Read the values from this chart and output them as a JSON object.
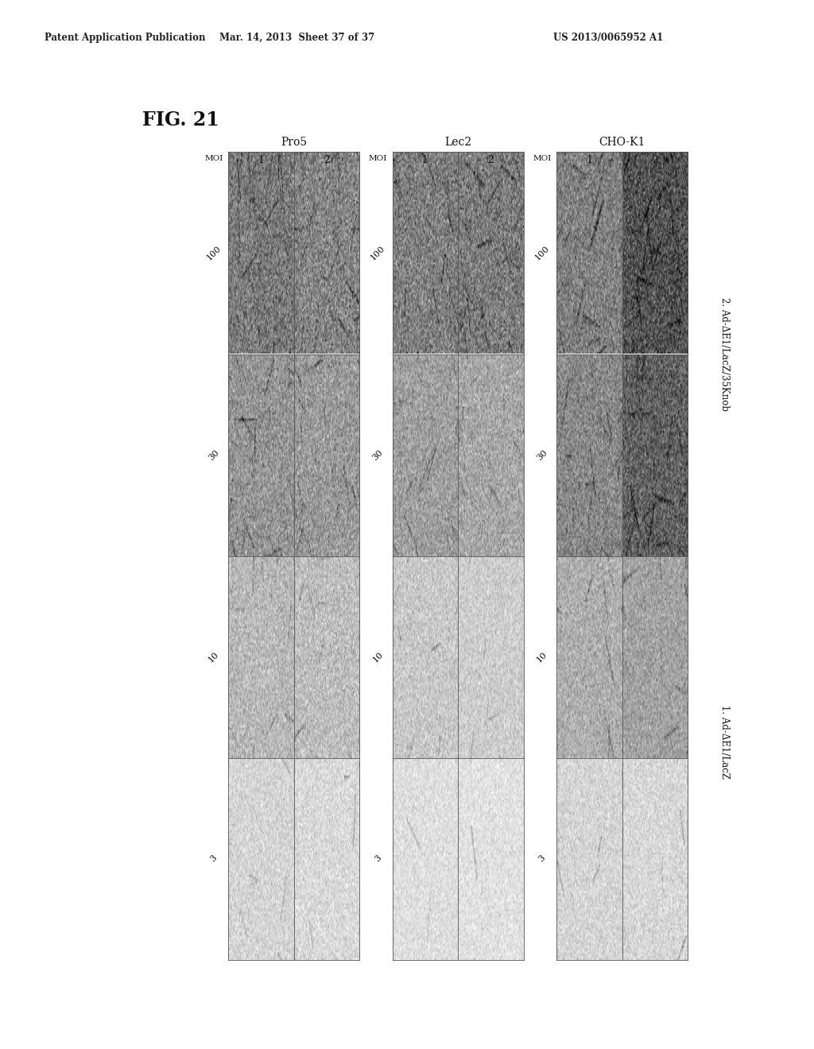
{
  "title": "FIG. 21",
  "header_left": "Patent Application Publication",
  "header_mid": "Mar. 14, 2013  Sheet 37 of 37",
  "header_right": "US 2013/0065952 A1",
  "cell_groups": [
    "Pro5",
    "Lec2",
    "CHO-K1"
  ],
  "moi_labels": [
    "100",
    "30",
    "10",
    "3"
  ],
  "col_labels": [
    "1",
    "2"
  ],
  "condition1": "1. Ad-ΔE1/LacZ",
  "condition2": "2. Ad-ΔE1/LacZ/35Knob",
  "moi_text": "MOI",
  "background_color": "#ffffff",
  "textures": {
    "Pro5_1_100": {
      "base": 0.48,
      "noise": 0.13,
      "fibers": 18
    },
    "Pro5_2_100": {
      "base": 0.52,
      "noise": 0.13,
      "fibers": 16
    },
    "Pro5_1_30": {
      "base": 0.58,
      "noise": 0.11,
      "fibers": 14
    },
    "Pro5_2_30": {
      "base": 0.6,
      "noise": 0.11,
      "fibers": 14
    },
    "Pro5_1_10": {
      "base": 0.72,
      "noise": 0.09,
      "fibers": 8
    },
    "Pro5_2_10": {
      "base": 0.74,
      "noise": 0.09,
      "fibers": 6
    },
    "Pro5_1_3": {
      "base": 0.83,
      "noise": 0.07,
      "fibers": 4
    },
    "Pro5_2_3": {
      "base": 0.85,
      "noise": 0.07,
      "fibers": 3
    },
    "Lec2_1_100": {
      "base": 0.5,
      "noise": 0.13,
      "fibers": 16
    },
    "Lec2_2_100": {
      "base": 0.48,
      "noise": 0.13,
      "fibers": 18
    },
    "Lec2_1_30": {
      "base": 0.62,
      "noise": 0.1,
      "fibers": 12
    },
    "Lec2_2_30": {
      "base": 0.65,
      "noise": 0.1,
      "fibers": 10
    },
    "Lec2_1_10": {
      "base": 0.78,
      "noise": 0.08,
      "fibers": 5
    },
    "Lec2_2_10": {
      "base": 0.8,
      "noise": 0.07,
      "fibers": 4
    },
    "Lec2_1_3": {
      "base": 0.87,
      "noise": 0.06,
      "fibers": 2
    },
    "Lec2_2_3": {
      "base": 0.88,
      "noise": 0.06,
      "fibers": 2
    },
    "CHO-K1_1_100": {
      "base": 0.5,
      "noise": 0.12,
      "fibers": 16
    },
    "CHO-K1_2_100": {
      "base": 0.32,
      "noise": 0.14,
      "fibers": 20
    },
    "CHO-K1_1_30": {
      "base": 0.53,
      "noise": 0.11,
      "fibers": 14
    },
    "CHO-K1_2_30": {
      "base": 0.38,
      "noise": 0.13,
      "fibers": 18
    },
    "CHO-K1_1_10": {
      "base": 0.68,
      "noise": 0.09,
      "fibers": 7
    },
    "CHO-K1_2_10": {
      "base": 0.63,
      "noise": 0.09,
      "fibers": 9
    },
    "CHO-K1_1_3": {
      "base": 0.83,
      "noise": 0.07,
      "fibers": 3
    },
    "CHO-K1_2_3": {
      "base": 0.84,
      "noise": 0.07,
      "fibers": 3
    }
  }
}
